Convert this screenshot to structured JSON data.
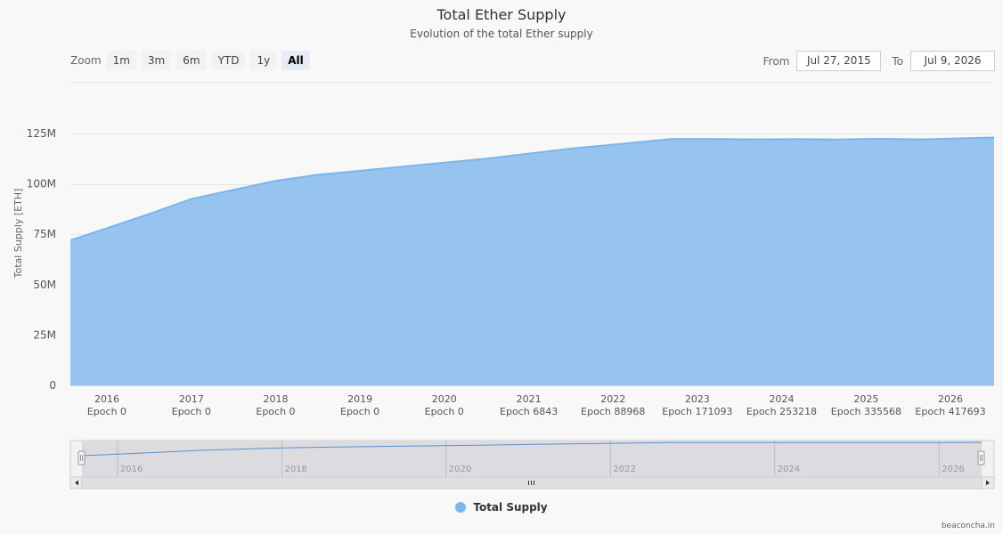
{
  "header": {
    "title": "Total Ether Supply",
    "subtitle": "Evolution of the total Ether supply"
  },
  "zoom": {
    "label": "Zoom",
    "buttons": [
      "1m",
      "3m",
      "6m",
      "YTD",
      "1y",
      "All"
    ],
    "active": "All"
  },
  "range": {
    "from_label": "From",
    "from_value": "Jul 27, 2015",
    "to_label": "To",
    "to_value": "Jul 9, 2026"
  },
  "legend": {
    "label": "Total Supply"
  },
  "credits": "beaconcha.in",
  "colors": {
    "series_fill": "#97c3ef",
    "series_line": "#7cb5ec"
  },
  "chart_data": {
    "type": "area",
    "title": "Total Ether Supply",
    "subtitle": "Evolution of the total Ether supply",
    "ylabel": "Total Supply [ETH]",
    "xlabel": "",
    "ylim": [
      0,
      125000000
    ],
    "y_ticks": [
      0,
      25000000,
      50000000,
      75000000,
      100000000,
      125000000
    ],
    "y_tick_labels": [
      "0",
      "25M",
      "50M",
      "75M",
      "100M",
      "125M"
    ],
    "xlim": [
      "2015-07-27",
      "2026-07-09"
    ],
    "x_ticks": [
      {
        "date": "2016-01-01",
        "year": "2016",
        "epoch": "Epoch 0"
      },
      {
        "date": "2017-01-01",
        "year": "2017",
        "epoch": "Epoch 0"
      },
      {
        "date": "2018-01-01",
        "year": "2018",
        "epoch": "Epoch 0"
      },
      {
        "date": "2019-01-01",
        "year": "2019",
        "epoch": "Epoch 0"
      },
      {
        "date": "2020-01-01",
        "year": "2020",
        "epoch": "Epoch 0"
      },
      {
        "date": "2021-01-01",
        "year": "2021",
        "epoch": "Epoch 6843"
      },
      {
        "date": "2022-01-01",
        "year": "2022",
        "epoch": "Epoch 88968"
      },
      {
        "date": "2023-01-01",
        "year": "2023",
        "epoch": "Epoch 171093"
      },
      {
        "date": "2024-01-01",
        "year": "2024",
        "epoch": "Epoch 253218"
      },
      {
        "date": "2025-01-01",
        "year": "2025",
        "epoch": "Epoch 335568"
      },
      {
        "date": "2026-01-01",
        "year": "2026",
        "epoch": "Epoch 417693"
      }
    ],
    "navigator_ticks": [
      "2016",
      "2018",
      "2020",
      "2022",
      "2024",
      "2026"
    ],
    "grid": true,
    "legend_position": "bottom-center",
    "series": [
      {
        "name": "Total Supply",
        "x": [
          "2015-07-27",
          "2016-01-01",
          "2016-07-01",
          "2017-01-01",
          "2017-07-01",
          "2018-01-01",
          "2018-07-01",
          "2019-01-01",
          "2019-07-01",
          "2020-01-01",
          "2020-07-01",
          "2021-01-01",
          "2021-07-01",
          "2022-01-01",
          "2022-09-15",
          "2023-03-01",
          "2023-09-01",
          "2024-03-01",
          "2024-09-01",
          "2025-03-01",
          "2025-09-01",
          "2026-03-01",
          "2026-07-09"
        ],
        "values": [
          72000000,
          78000000,
          85000000,
          92500000,
          97000000,
          101500000,
          104500000,
          106500000,
          108500000,
          110500000,
          112500000,
          115000000,
          117500000,
          119500000,
          122300000,
          122300000,
          122100000,
          122200000,
          122000000,
          122400000,
          122100000,
          122600000,
          123000000
        ]
      }
    ]
  }
}
